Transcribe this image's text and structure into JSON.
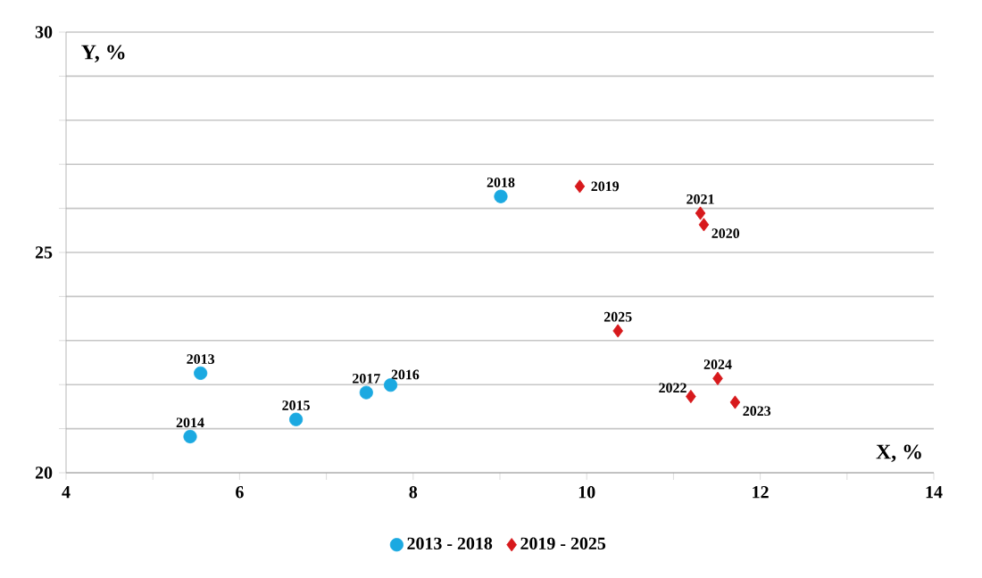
{
  "chart_data": {
    "type": "scatter",
    "xlabel": "X, %",
    "ylabel": "Y, %",
    "xlim": [
      4,
      14
    ],
    "ylim": [
      20,
      30
    ],
    "xticks": [
      4,
      {
        "value": 5,
        "label": null
      },
      6,
      {
        "value": 7,
        "label": null
      },
      8,
      {
        "value": 9,
        "label": null
      },
      10,
      {
        "value": 11,
        "label": null
      },
      12,
      {
        "value": 13,
        "label": null
      },
      14
    ],
    "yticks": [
      20,
      {
        "value": 21,
        "label": null
      },
      {
        "value": 22,
        "label": null
      },
      {
        "value": 23,
        "label": null
      },
      {
        "value": 24,
        "label": null
      },
      25,
      {
        "value": 26,
        "label": null
      },
      {
        "value": 27,
        "label": null
      },
      {
        "value": 28,
        "label": null
      },
      {
        "value": 29,
        "label": null
      },
      30
    ],
    "grid": "y",
    "legend": "bottom",
    "series": [
      {
        "name": "2013 - 2018",
        "color": "#1ba9e1",
        "marker": "circle",
        "x": [
          5.55,
          5.43,
          6.65,
          7.74,
          7.46,
          9.01
        ],
        "values": [
          22.26,
          20.82,
          21.21,
          21.99,
          21.82,
          26.27
        ]
      },
      {
        "name": "2019 - 2025",
        "color": "#d7191c",
        "marker": "diamond",
        "x": [
          9.92,
          11.35,
          11.31,
          11.2,
          11.71,
          11.51,
          10.36
        ],
        "values": [
          26.5,
          25.63,
          25.89,
          21.73,
          21.6,
          22.14,
          23.22
        ]
      }
    ],
    "annotations": [
      {
        "text": "2013",
        "x": 5.55,
        "y": 22.26
      },
      {
        "text": "2014",
        "x": 5.43,
        "y": 20.82
      },
      {
        "text": "2015",
        "x": 6.65,
        "y": 21.21
      },
      {
        "text": "2016",
        "x": 7.74,
        "y": 21.99
      },
      {
        "text": "2017",
        "x": 7.46,
        "y": 21.82
      },
      {
        "text": "2018",
        "x": 9.01,
        "y": 26.27
      },
      {
        "text": "2019",
        "x": 9.92,
        "y": 26.5
      },
      {
        "text": "2020",
        "x": 11.35,
        "y": 25.63
      },
      {
        "text": "2021",
        "x": 11.31,
        "y": 25.89
      },
      {
        "text": "2022",
        "x": 11.2,
        "y": 21.73
      },
      {
        "text": "2023",
        "x": 11.71,
        "y": 21.6
      },
      {
        "text": "2024",
        "x": 11.51,
        "y": 22.14
      },
      {
        "text": "2025",
        "x": 10.36,
        "y": 23.22
      }
    ]
  }
}
